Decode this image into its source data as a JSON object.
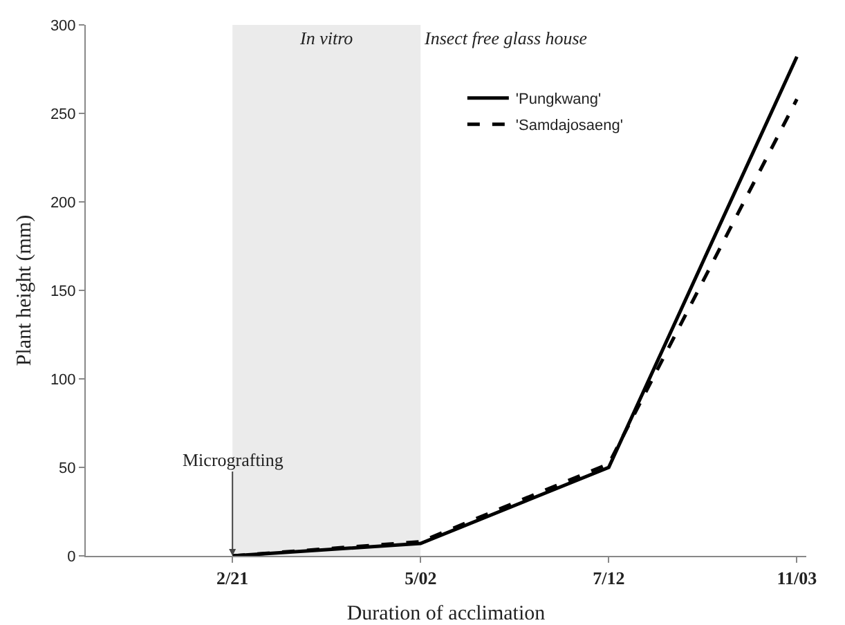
{
  "chart_data": {
    "type": "line",
    "xlabel": "Duration of acclimation",
    "ylabel": "Plant height (mm)",
    "categories": [
      "2/21",
      "5/02",
      "7/12",
      "11/03"
    ],
    "series": [
      {
        "name": "'Pungkwang'",
        "color": "#000000",
        "line_style": "solid",
        "values": [
          0,
          7,
          50,
          282
        ]
      },
      {
        "name": "'Samdajosaeng'",
        "color": "#000000",
        "line_style": "dashed",
        "values": [
          0,
          8,
          52,
          258
        ]
      }
    ],
    "ylim": [
      0,
      300
    ],
    "yticks": [
      0,
      50,
      100,
      150,
      200,
      250,
      300
    ],
    "bands": [
      {
        "axis": "x",
        "from": "2/21",
        "to": "5/02",
        "label": "In vitro",
        "color": "#ebebeb"
      }
    ],
    "annotations": [
      "Insect free glass house",
      {
        "text": "Micrografting",
        "x": "2/21",
        "y": 0
      }
    ],
    "grid": false,
    "legend": "top right",
    "marker": "none"
  }
}
